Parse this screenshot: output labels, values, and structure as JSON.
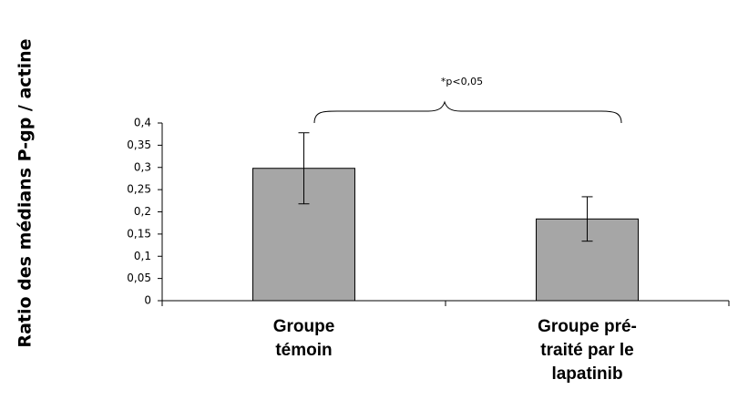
{
  "chart_data": {
    "type": "bar",
    "y_label": "Ratio des médians P-gp / actine",
    "annotation": "*p<0,05",
    "categories": [
      "Groupe témoin",
      "Groupe pré-traité par le lapatinib"
    ],
    "values": [
      0.298,
      0.184
    ],
    "errors": [
      0.08,
      0.05
    ],
    "color": "#a6a6a6",
    "ylim": [
      0,
      0.4
    ],
    "yticks": [
      0,
      {
        "value": 0.05,
        "label": "0,05"
      },
      {
        "value": 0.1,
        "label": "0,1"
      },
      {
        "value": 0.15,
        "label": "0,15"
      },
      {
        "value": 0.2,
        "label": "0,2"
      },
      {
        "value": 0.25,
        "label": "0,25"
      },
      {
        "value": 0.3,
        "label": "0,3"
      },
      {
        "value": 0.35,
        "label": "0,35"
      },
      {
        "value": 0.4,
        "label": "0,4"
      }
    ],
    "grid": false
  }
}
